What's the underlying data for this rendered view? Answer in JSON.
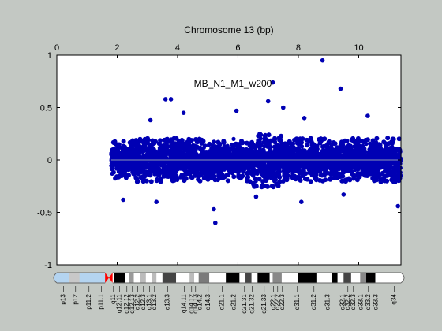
{
  "chart_data": {
    "type": "scatter",
    "title": "Chromosome 13 (bp)",
    "annotation": "MB_N1_M1_w200",
    "xlim": [
      0,
      11.4
    ],
    "ylim": [
      -1,
      1
    ],
    "x_ticks": [
      0,
      2,
      4,
      6,
      8,
      10
    ],
    "x_tick_labels": [
      "0",
      "2",
      "4",
      "6",
      "8",
      "10"
    ],
    "y_ticks": [
      -1,
      -0.5,
      0,
      0.5,
      1
    ],
    "y_tick_labels": [
      "-1",
      "-0.5",
      "0",
      "0.5",
      "1"
    ],
    "x_axis_position": "top",
    "grid": false,
    "marker_color": "#0000b4",
    "reference_line": {
      "y": 0,
      "color": "#8c96b4"
    },
    "data_range_x": [
      1.8,
      11.4
    ],
    "band_ranges": [
      {
        "x_from": 1.8,
        "x_to": 2.5,
        "y_low": -0.28,
        "y_high": 0.2
      },
      {
        "x_from": 2.5,
        "x_to": 4.0,
        "y_low": -0.28,
        "y_high": 0.28
      },
      {
        "x_from": 4.0,
        "x_to": 6.5,
        "y_low": -0.25,
        "y_high": 0.3
      },
      {
        "x_from": 6.5,
        "x_to": 7.5,
        "y_low": -0.3,
        "y_high": 0.4
      },
      {
        "x_from": 7.5,
        "x_to": 10.0,
        "y_low": -0.25,
        "y_high": 0.3
      },
      {
        "x_from": 10.0,
        "x_to": 11.4,
        "y_low": -0.25,
        "y_high": 0.32
      }
    ],
    "outliers": [
      {
        "x": 8.8,
        "y": 0.95
      },
      {
        "x": 9.4,
        "y": 0.68
      },
      {
        "x": 7.15,
        "y": 0.74
      },
      {
        "x": 3.6,
        "y": 0.58
      },
      {
        "x": 3.78,
        "y": 0.58
      },
      {
        "x": 5.95,
        "y": 0.47
      },
      {
        "x": 7.0,
        "y": 0.56
      },
      {
        "x": 7.5,
        "y": 0.5
      },
      {
        "x": 4.2,
        "y": 0.45
      },
      {
        "x": 3.1,
        "y": 0.38
      },
      {
        "x": 8.2,
        "y": 0.4
      },
      {
        "x": 10.3,
        "y": 0.42
      },
      {
        "x": 2.2,
        "y": -0.38
      },
      {
        "x": 3.3,
        "y": -0.4
      },
      {
        "x": 5.2,
        "y": -0.47
      },
      {
        "x": 5.25,
        "y": -0.6
      },
      {
        "x": 8.1,
        "y": -0.4
      },
      {
        "x": 11.3,
        "y": -0.44
      },
      {
        "x": 6.6,
        "y": -0.35
      },
      {
        "x": 9.5,
        "y": -0.33
      }
    ],
    "ideogram": {
      "bands": [
        {
          "name": "p13",
          "from": 0,
          "to": 0.4,
          "color": "#b4d4f0"
        },
        {
          "name": "p12",
          "from": 0.4,
          "to": 0.75,
          "color": "#c8c8c8"
        },
        {
          "name": "p11.2",
          "from": 0.75,
          "to": 1.3,
          "color": "#b4d4f0"
        },
        {
          "name": "p11.1",
          "from": 1.3,
          "to": 1.6,
          "color": "#b4d4f0"
        },
        {
          "name": "cen",
          "from": 1.6,
          "to": 1.85,
          "color": "#ff0000"
        },
        {
          "name": "q11",
          "from": 1.85,
          "to": 1.9,
          "color": "#ffffff"
        },
        {
          "name": "q12.11",
          "from": 1.9,
          "to": 2.25,
          "color": "#000000"
        },
        {
          "name": "q12.12",
          "from": 2.25,
          "to": 2.4,
          "color": "#ffffff"
        },
        {
          "name": "q12.13",
          "from": 2.4,
          "to": 2.55,
          "color": "#9a9a9a"
        },
        {
          "name": "q12.2",
          "from": 2.55,
          "to": 2.75,
          "color": "#ffffff"
        },
        {
          "name": "q12.3",
          "from": 2.75,
          "to": 2.95,
          "color": "#bbbbbb"
        },
        {
          "name": "q13.1",
          "from": 2.95,
          "to": 3.15,
          "color": "#ffffff"
        },
        {
          "name": "q13.2",
          "from": 3.15,
          "to": 3.3,
          "color": "#bbbbbb"
        },
        {
          "name": "q13.3",
          "from": 3.3,
          "to": 3.5,
          "color": "#ffffff"
        },
        {
          "name": "q14.11",
          "from": 3.5,
          "to": 3.95,
          "color": "#444444"
        },
        {
          "name": "q14.12",
          "from": 3.95,
          "to": 4.4,
          "color": "#ffffff"
        },
        {
          "name": "q14.13",
          "from": 4.4,
          "to": 4.55,
          "color": "#bbbbbb"
        },
        {
          "name": "q14.2",
          "from": 4.55,
          "to": 4.7,
          "color": "#ffffff"
        },
        {
          "name": "q14.3",
          "from": 4.7,
          "to": 5.05,
          "color": "#7a7a7a"
        },
        {
          "name": "q21.1",
          "from": 5.05,
          "to": 5.6,
          "color": "#ffffff"
        },
        {
          "name": "q21.2",
          "from": 5.6,
          "to": 6.05,
          "color": "#000000"
        },
        {
          "name": "q21.31",
          "from": 6.05,
          "to": 6.25,
          "color": "#ffffff"
        },
        {
          "name": "q21.32",
          "from": 6.25,
          "to": 6.45,
          "color": "#444444"
        },
        {
          "name": "q21.33",
          "from": 6.45,
          "to": 6.65,
          "color": "#ffffff"
        },
        {
          "name": "q22.1",
          "from": 6.65,
          "to": 7.05,
          "color": "#000000"
        },
        {
          "name": "q22.2",
          "from": 7.05,
          "to": 7.15,
          "color": "#ffffff"
        },
        {
          "name": "q22.3",
          "from": 7.15,
          "to": 7.45,
          "color": "#888888"
        },
        {
          "name": "q31.1",
          "from": 7.45,
          "to": 8.0,
          "color": "#ffffff"
        },
        {
          "name": "q31.2",
          "from": 8.0,
          "to": 8.6,
          "color": "#000000"
        },
        {
          "name": "q31.3",
          "from": 8.6,
          "to": 9.1,
          "color": "#ffffff"
        },
        {
          "name": "q32.1",
          "from": 9.1,
          "to": 9.3,
          "color": "#000000"
        },
        {
          "name": "q32.2",
          "from": 9.3,
          "to": 9.5,
          "color": "#ffffff"
        },
        {
          "name": "q32.3",
          "from": 9.5,
          "to": 9.75,
          "color": "#444444"
        },
        {
          "name": "q33.1",
          "from": 9.75,
          "to": 10.05,
          "color": "#ffffff"
        },
        {
          "name": "q33.2",
          "from": 10.05,
          "to": 10.25,
          "color": "#888888"
        },
        {
          "name": "q33.3",
          "from": 10.25,
          "to": 10.55,
          "color": "#000000"
        },
        {
          "name": "q34",
          "from": 10.55,
          "to": 11.4,
          "color": "#ffffff"
        }
      ],
      "labels": [
        {
          "text": "p13",
          "x": 0.2
        },
        {
          "text": "p12",
          "x": 0.6
        },
        {
          "text": "p11.2",
          "x": 1.05
        },
        {
          "text": "p11.1",
          "x": 1.45
        },
        {
          "text": "q11",
          "x": 1.85
        },
        {
          "text": "q12.11",
          "x": 2.05
        },
        {
          "text": "q12.12",
          "x": 2.3
        },
        {
          "text": "q12.13",
          "x": 2.48
        },
        {
          "text": "q12.2",
          "x": 2.65
        },
        {
          "text": "q12.3",
          "x": 2.85
        },
        {
          "text": "q13.1",
          "x": 3.05
        },
        {
          "text": "q13.2",
          "x": 3.22
        },
        {
          "text": "q13.3",
          "x": 3.65
        },
        {
          "text": "q14.11",
          "x": 4.2
        },
        {
          "text": "q14.12",
          "x": 4.45
        },
        {
          "text": "q14.13",
          "x": 4.58
        },
        {
          "text": "q14.2",
          "x": 4.72
        },
        {
          "text": "q14.3",
          "x": 5.0
        },
        {
          "text": "q21.1",
          "x": 5.45
        },
        {
          "text": "q21.2",
          "x": 5.85
        },
        {
          "text": "q21.31",
          "x": 6.2
        },
        {
          "text": "q21.32",
          "x": 6.45
        },
        {
          "text": "q21.33",
          "x": 6.85
        },
        {
          "text": "q22.1",
          "x": 7.15
        },
        {
          "text": "q22.2",
          "x": 7.3
        },
        {
          "text": "q22.3",
          "x": 7.45
        },
        {
          "text": "q31.1",
          "x": 7.95
        },
        {
          "text": "q31.2",
          "x": 8.5
        },
        {
          "text": "q31.3",
          "x": 8.95
        },
        {
          "text": "q32.1",
          "x": 9.45
        },
        {
          "text": "q32.2",
          "x": 9.62
        },
        {
          "text": "q32.3",
          "x": 9.8
        },
        {
          "text": "q33.1",
          "x": 10.05
        },
        {
          "text": "q33.2",
          "x": 10.3
        },
        {
          "text": "q33.3",
          "x": 10.55
        },
        {
          "text": "q34",
          "x": 11.15
        }
      ]
    }
  }
}
